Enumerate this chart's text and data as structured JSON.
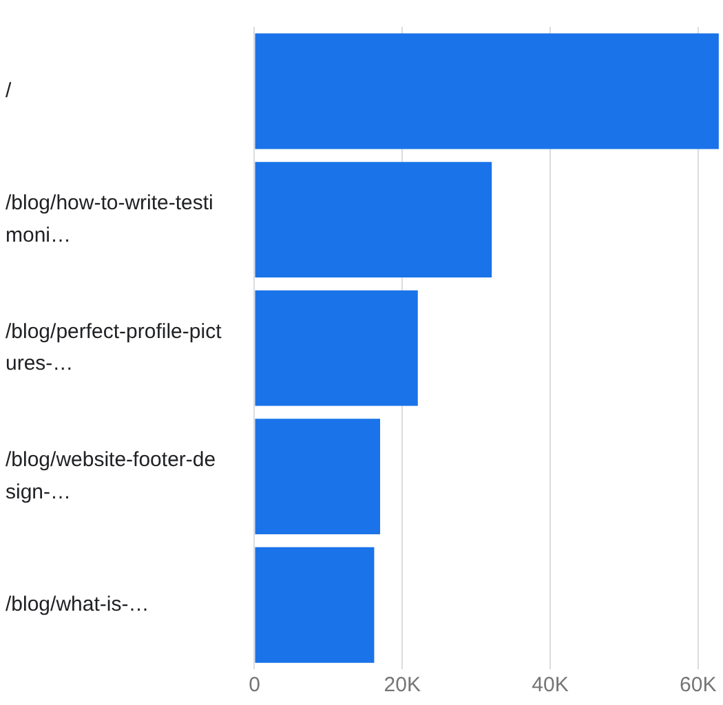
{
  "chart_data": {
    "type": "bar",
    "orientation": "horizontal",
    "categories": [
      "/",
      "/blog/how-to-write-testimoni…",
      "/blog/perfect-profile-pictures-…",
      "/blog/website-footer-design-…",
      "/blog/what-is-…"
    ],
    "values": [
      62800,
      32100,
      22100,
      17000,
      16200
    ],
    "color": "#1a73e8",
    "xlim": [
      0,
      63000
    ],
    "xticks": [
      {
        "value": 0,
        "label": "0"
      },
      {
        "value": 20000,
        "label": "20K"
      },
      {
        "value": 40000,
        "label": "40K"
      },
      {
        "value": 60000,
        "label": "60K"
      }
    ],
    "grid": "x"
  }
}
